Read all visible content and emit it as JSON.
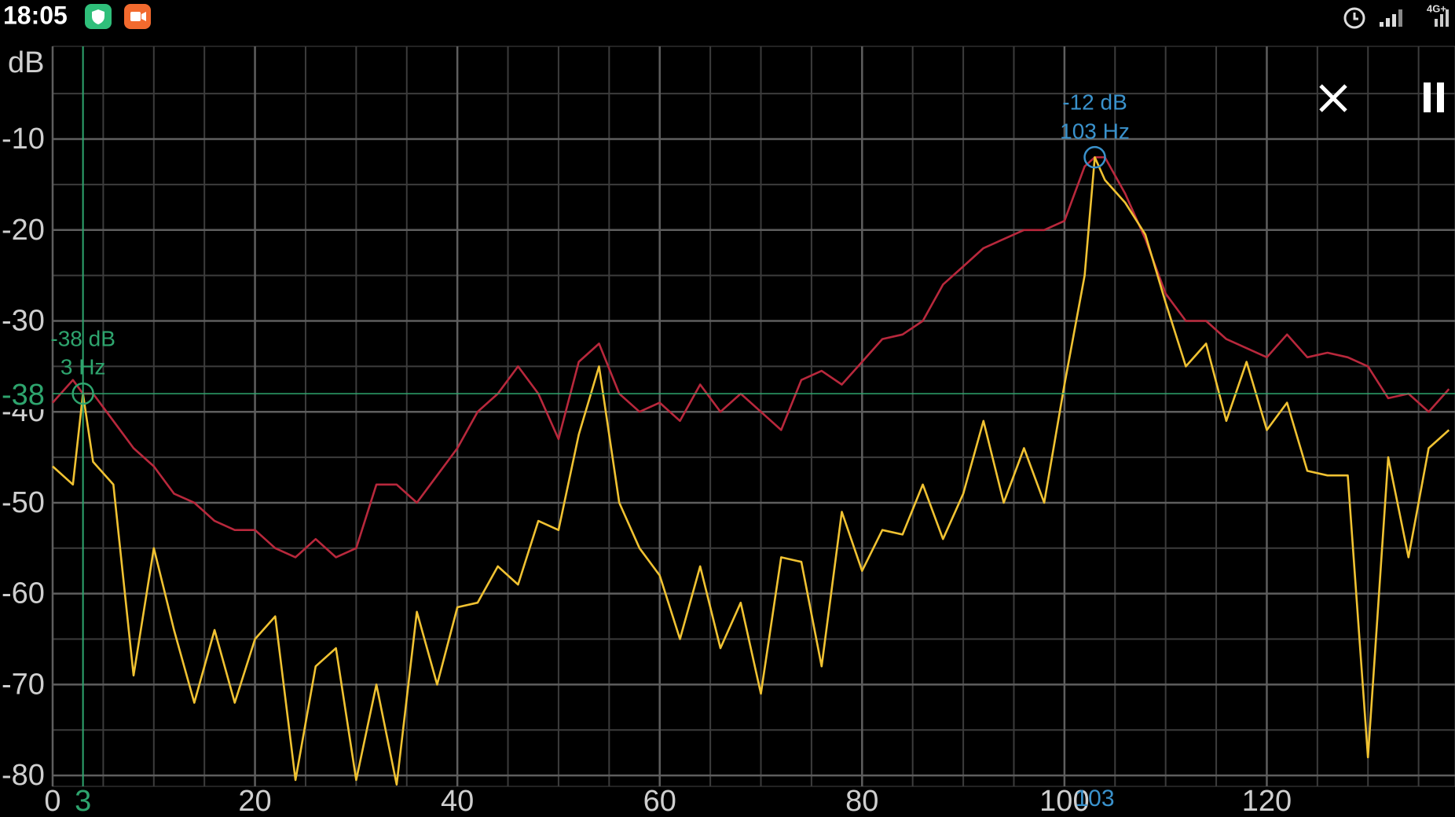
{
  "status_bar": {
    "time": "18:05",
    "network": "4G+"
  },
  "chart_data": {
    "type": "line",
    "y_label": "dB",
    "x": [
      0,
      2,
      3,
      4,
      6,
      8,
      10,
      12,
      14,
      16,
      18,
      20,
      22,
      24,
      26,
      28,
      30,
      32,
      34,
      36,
      38,
      40,
      42,
      44,
      46,
      48,
      50,
      52,
      54,
      56,
      58,
      60,
      62,
      64,
      66,
      68,
      70,
      72,
      74,
      76,
      78,
      80,
      82,
      84,
      86,
      88,
      90,
      92,
      94,
      96,
      98,
      100,
      102,
      103,
      104,
      106,
      108,
      110,
      112,
      114,
      116,
      118,
      120,
      122,
      124,
      126,
      128,
      130,
      132,
      134,
      136,
      138
    ],
    "series": [
      {
        "color": "#b8283c",
        "values": [
          -39,
          -36.5,
          -38,
          -38,
          -41,
          -44,
          -46,
          -49,
          -50,
          -52,
          -53,
          -53,
          -55,
          -56,
          -54,
          -56,
          -55,
          -48,
          -48,
          -50,
          -47,
          -44,
          -40,
          -38,
          -35,
          -38,
          -43,
          -34.5,
          -32.5,
          -38,
          -40,
          -39,
          -41,
          -37,
          -40,
          -38,
          -40,
          -42,
          -36.5,
          -35.5,
          -37,
          -34.5,
          -32,
          -31.5,
          -30,
          -26,
          -24,
          -22,
          -21,
          -20,
          -20,
          -19,
          -13,
          -12,
          -12,
          -16,
          -21,
          -27,
          -30,
          -30,
          -32,
          -33,
          -34,
          -31.5,
          -34,
          -33.5,
          -34,
          -35,
          -38.5,
          -38,
          -40,
          -37.5
        ]
      },
      {
        "color": "#f0c232",
        "values": [
          -46,
          -48,
          -38,
          -45.5,
          -48,
          -69,
          -55,
          -64,
          -72,
          -64,
          -72,
          -65,
          -62.5,
          -80.5,
          -68,
          -66,
          -80.5,
          -70,
          -81,
          -62,
          -70,
          -61.5,
          -61,
          -57,
          -59,
          -52,
          -53,
          -42.5,
          -35,
          -50,
          -55,
          -58,
          -65,
          -57,
          -66,
          -61,
          -71,
          -56,
          -56.5,
          -68,
          -51,
          -57.5,
          -53,
          -53.5,
          -48,
          -54,
          -49,
          -41,
          -50,
          -44,
          -50,
          -37,
          -25,
          -12,
          -14.5,
          -17,
          -20.5,
          -28,
          -35,
          -32.5,
          -41,
          -34.5,
          -42,
          -39,
          -46.5,
          -47,
          -47,
          -78,
          -45,
          -56,
          -44,
          -42
        ]
      }
    ],
    "xlim": [
      0,
      138.6
    ],
    "ylim": [
      -81.2,
      0.2
    ],
    "xticks": [
      0,
      20,
      40,
      60,
      80,
      100,
      120
    ],
    "yticks": [
      -10,
      -20,
      -30,
      -40,
      -50,
      -60,
      -70,
      -80
    ],
    "minor_xticks": [
      5,
      10,
      15,
      25,
      30,
      35,
      45,
      50,
      55,
      65,
      70,
      75,
      85,
      90,
      95,
      105,
      110,
      115,
      125,
      130,
      135
    ],
    "minor_yticks": [
      -5,
      -15,
      -25,
      -35,
      -45,
      -55,
      -65,
      -75
    ],
    "grid": true,
    "cursor": {
      "freq": 3,
      "db": -38,
      "db_label": "-38 dB",
      "freq_label": "3 Hz",
      "color": "#2ea56e"
    },
    "peak": {
      "freq": 103,
      "db": -12,
      "db_label": "-12 dB",
      "freq_label": "103 Hz",
      "color": "#3a92cc"
    }
  }
}
